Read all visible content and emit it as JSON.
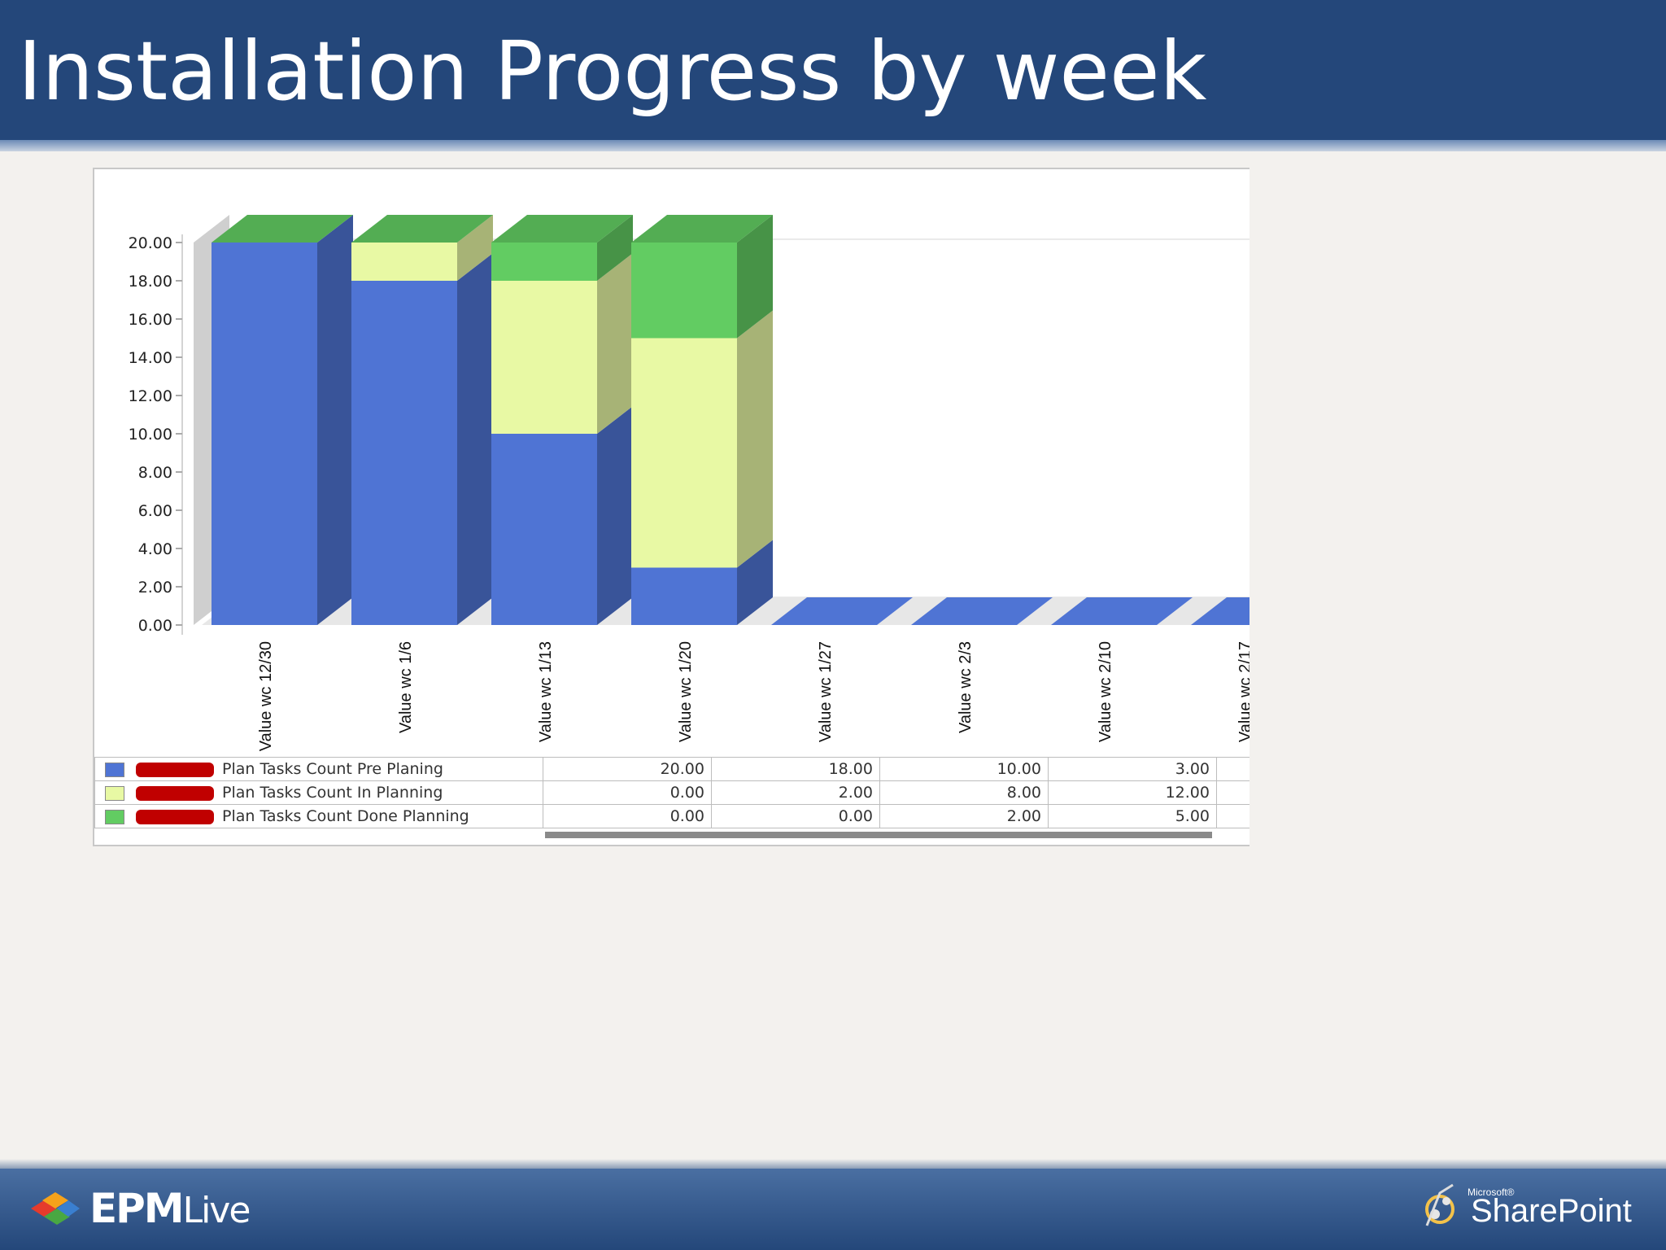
{
  "header": {
    "title": "Installation Progress by week"
  },
  "chart_data": {
    "type": "bar",
    "stacked": true,
    "three_d": true,
    "title": "",
    "xlabel": "",
    "ylabel": "",
    "ylim": [
      0,
      20
    ],
    "yticks": [
      "0.00",
      "2.00",
      "4.00",
      "6.00",
      "8.00",
      "10.00",
      "12.00",
      "14.00",
      "16.00",
      "18.00",
      "20.00"
    ],
    "categories": [
      "Value wc 12/30",
      "Value wc 1/6",
      "Value wc 1/13",
      "Value wc 1/20",
      "Value wc 1/27",
      "Value wc 2/3",
      "Value wc 2/10",
      "Value wc 2/17"
    ],
    "series": [
      {
        "name": "Plan Tasks Count Pre Planing",
        "color": "#4f74d4",
        "values": [
          20,
          18,
          10,
          3,
          0,
          0,
          0,
          0
        ]
      },
      {
        "name": "Plan Tasks Count In Planning",
        "color": "#e8f9a4",
        "values": [
          0,
          2,
          8,
          12,
          0,
          0,
          0,
          0
        ]
      },
      {
        "name": "Plan Tasks Count Done Planning",
        "color": "#62cc62",
        "values": [
          0,
          0,
          2,
          5,
          0,
          0,
          0,
          0
        ]
      }
    ],
    "table": {
      "rows": [
        {
          "label": "Plan Tasks Count Pre Planing",
          "values": [
            "20.00",
            "18.00",
            "10.00",
            "3.00"
          ]
        },
        {
          "label": "Plan Tasks Count In Planning",
          "values": [
            "0.00",
            "2.00",
            "8.00",
            "12.00"
          ]
        },
        {
          "label": "Plan Tasks Count Done Planning",
          "values": [
            "0.00",
            "0.00",
            "2.00",
            "5.00"
          ]
        }
      ]
    },
    "grid": false,
    "legend": "bottom-table"
  },
  "footer": {
    "left_logo": {
      "icon": "epm-live-logo-icon",
      "brand": "EPM",
      "suffix": "Live"
    },
    "right_logo": {
      "icon": "sharepoint-logo-icon",
      "small": "Microsoft®",
      "brand": "SharePoint"
    }
  }
}
